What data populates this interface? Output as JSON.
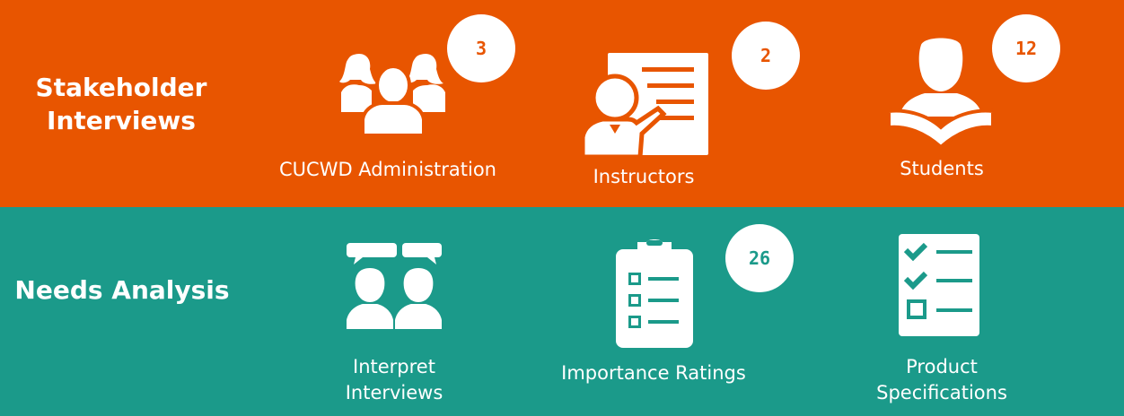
{
  "colors": {
    "top_band": "#e85500",
    "bottom_band": "#1b9a8a",
    "icon": "#ffffff"
  },
  "stakeholder_interviews": {
    "title_line1": "Stakeholder",
    "title_line2": "Interviews",
    "items": [
      {
        "label": "CUCWD Administration",
        "count": "3",
        "icon": "group-icon"
      },
      {
        "label": "Instructors",
        "count": "2",
        "icon": "presenter-icon"
      },
      {
        "label": "Students",
        "count": "12",
        "icon": "reader-icon"
      }
    ]
  },
  "needs_analysis": {
    "title": "Needs Analysis",
    "items": [
      {
        "label_line1": "Interpret",
        "label_line2": "Interviews",
        "icon": "conversation-icon"
      },
      {
        "label": "Importance Ratings",
        "count": "26",
        "icon": "clipboard-icon"
      },
      {
        "label_line1": "Product",
        "label_line2": "Specifications",
        "icon": "checklist-icon"
      }
    ]
  }
}
